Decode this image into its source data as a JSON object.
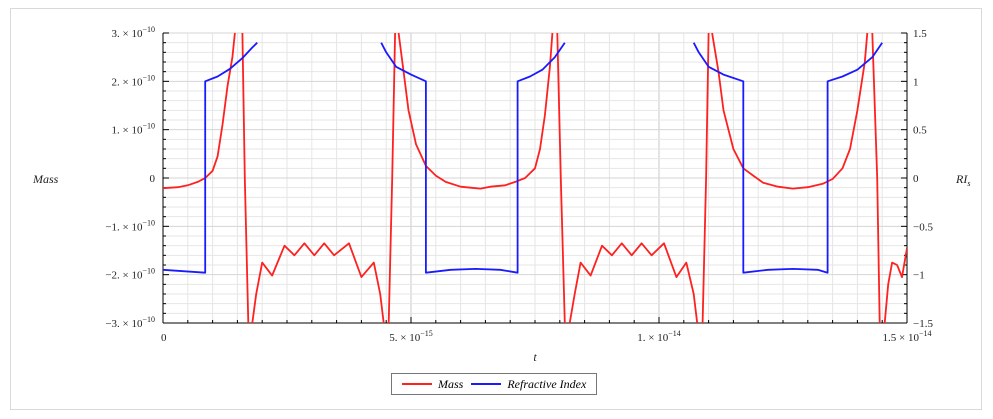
{
  "chart_data": {
    "type": "line",
    "xlabel": "t",
    "ylabel_left": "Mass",
    "ylabel_right": "RI",
    "ylabel_right_sub": "s",
    "xlim": [
      0,
      1.5e-14
    ],
    "ylim_left": [
      -3e-10,
      3e-10
    ],
    "ylim_right": [
      -1.5,
      1.5
    ],
    "grid": true,
    "legend_position": "bottom-center",
    "x_ticks": [
      {
        "value": 0,
        "label": "0"
      },
      {
        "value": 5e-15,
        "label": "5. × 10",
        "exp": "−15"
      },
      {
        "value": 1e-14,
        "label": "1. × 10",
        "exp": "−14"
      },
      {
        "value": 1.5e-14,
        "label": "1.5 × 10",
        "exp": "−14"
      }
    ],
    "left_ticks": [
      {
        "value": 3e-10,
        "label": "3. × 10",
        "exp": "−10"
      },
      {
        "value": 2e-10,
        "label": "2. × 10",
        "exp": "−10"
      },
      {
        "value": 1e-10,
        "label": "1. × 10",
        "exp": "−10"
      },
      {
        "value": 0,
        "label": "0",
        "exp": ""
      },
      {
        "value": -1e-10,
        "label": "−1. × 10",
        "exp": "−10"
      },
      {
        "value": -2e-10,
        "label": "−2. × 10",
        "exp": "−10"
      },
      {
        "value": -3e-10,
        "label": "−3. × 10",
        "exp": "−10"
      }
    ],
    "right_ticks": [
      {
        "value": 1.5,
        "label": "1.5"
      },
      {
        "value": 1,
        "label": "1"
      },
      {
        "value": 0.5,
        "label": "0.5"
      },
      {
        "value": 0,
        "label": "0"
      },
      {
        "value": -0.5,
        "label": "−0.5"
      },
      {
        "value": -1,
        "label": "−1"
      },
      {
        "value": -1.5,
        "label": "−1.5"
      }
    ],
    "series": [
      {
        "name": "Mass",
        "color": "#ff2020",
        "axis": "left",
        "segments": [
          [
            [
              0,
              -2.1e-11
            ],
            [
              3e-16,
              -1.9e-11
            ],
            [
              5e-16,
              -1.5e-11
            ],
            [
              7e-16,
              -8e-12
            ],
            [
              8.5e-16,
              0
            ],
            [
              1e-15,
              1.5e-11
            ],
            [
              1.1e-15,
              4.5e-11
            ],
            [
              1.2e-15,
              1.1e-10
            ],
            [
              1.3e-15,
              1.9e-10
            ],
            [
              1.4e-15,
              2.5e-10
            ],
            [
              1.45e-15,
              3e-10
            ]
          ],
          [
            [
              1.6e-15,
              3e-10
            ],
            [
              1.65e-15,
              0
            ],
            [
              1.72e-15,
              -3e-10
            ]
          ],
          [
            [
              1.8e-15,
              -3e-10
            ],
            [
              1.88e-15,
              -2.4e-10
            ],
            [
              2e-15,
              -1.75e-10
            ],
            [
              2.2e-15,
              -2.02e-10
            ],
            [
              2.45e-15,
              -1.4e-10
            ],
            [
              2.65e-15,
              -1.6e-10
            ],
            [
              2.85e-15,
              -1.35e-10
            ],
            [
              3.05e-15,
              -1.6e-10
            ],
            [
              3.25e-15,
              -1.35e-10
            ],
            [
              3.45e-15,
              -1.6e-10
            ],
            [
              3.75e-15,
              -1.35e-10
            ],
            [
              4e-15,
              -2.05e-10
            ],
            [
              4.25e-15,
              -1.75e-10
            ],
            [
              4.38e-15,
              -2.4e-10
            ],
            [
              4.45e-15,
              -3e-10
            ]
          ],
          [
            [
              4.55e-15,
              -3e-10
            ],
            [
              4.62e-15,
              0
            ],
            [
              4.68e-15,
              3e-10
            ]
          ],
          [
            [
              4.75e-15,
              3e-10
            ],
            [
              4.85e-15,
              2.2e-10
            ],
            [
              4.95e-15,
              1.4e-10
            ],
            [
              5.1e-15,
              7e-11
            ],
            [
              5.3e-15,
              2.5e-11
            ],
            [
              5.5e-15,
              5e-12
            ],
            [
              5.7e-15,
              -8e-12
            ],
            [
              6e-15,
              -1.8e-11
            ],
            [
              6.2e-15,
              -2e-11
            ],
            [
              6.4e-15,
              -2.2e-11
            ],
            [
              6.6e-15,
              -1.8e-11
            ],
            [
              6.9e-15,
              -1.5e-11
            ],
            [
              7.1e-15,
              -8e-12
            ],
            [
              7.3e-15,
              0
            ],
            [
              7.5e-15,
              2e-11
            ],
            [
              7.6e-15,
              6e-11
            ],
            [
              7.7e-15,
              1.3e-10
            ],
            [
              7.8e-15,
              2.3e-10
            ],
            [
              7.85e-15,
              3e-10
            ]
          ],
          [
            [
              7.95e-15,
              3e-10
            ],
            [
              8.02e-15,
              0
            ],
            [
              8.1e-15,
              -3e-10
            ]
          ],
          [
            [
              8.2e-15,
              -3e-10
            ],
            [
              8.3e-15,
              -2.4e-10
            ],
            [
              8.42e-15,
              -1.75e-10
            ],
            [
              8.62e-15,
              -2.02e-10
            ],
            [
              8.85e-15,
              -1.4e-10
            ],
            [
              9.05e-15,
              -1.6e-10
            ],
            [
              9.25e-15,
              -1.35e-10
            ],
            [
              9.45e-15,
              -1.6e-10
            ],
            [
              9.65e-15,
              -1.35e-10
            ],
            [
              9.85e-15,
              -1.6e-10
            ],
            [
              1.01e-14,
              -1.35e-10
            ],
            [
              1.035e-14,
              -2.05e-10
            ],
            [
              1.055e-14,
              -1.75e-10
            ],
            [
              1.07e-14,
              -2.4e-10
            ],
            [
              1.077e-14,
              -3e-10
            ]
          ],
          [
            [
              1.088e-14,
              -3e-10
            ],
            [
              1.095e-14,
              0
            ],
            [
              1.1e-14,
              3e-10
            ]
          ],
          [
            [
              1.107e-14,
              3e-10
            ],
            [
              1.12e-14,
              2.2e-10
            ],
            [
              1.13e-14,
              1.4e-10
            ],
            [
              1.15e-14,
              6e-11
            ],
            [
              1.17e-14,
              2e-11
            ],
            [
              1.19e-14,
              5e-12
            ],
            [
              1.21e-14,
              -1e-11
            ],
            [
              1.24e-14,
              -1.8e-11
            ],
            [
              1.27e-14,
              -2.2e-11
            ],
            [
              1.3e-14,
              -1.9e-11
            ],
            [
              1.33e-14,
              -1.2e-11
            ],
            [
              1.35e-14,
              -2e-12
            ],
            [
              1.37e-14,
              2e-11
            ],
            [
              1.385e-14,
              6e-11
            ],
            [
              1.4e-14,
              1.4e-10
            ],
            [
              1.415e-14,
              2.4e-10
            ],
            [
              1.42e-14,
              3e-10
            ]
          ],
          [
            [
              1.43e-14,
              3e-10
            ],
            [
              1.44e-14,
              0
            ],
            [
              1.445e-14,
              -3e-10
            ]
          ],
          [
            [
              1.455e-14,
              -3e-10
            ],
            [
              1.462e-14,
              -2.2e-10
            ],
            [
              1.47e-14,
              -1.75e-10
            ],
            [
              1.48e-14,
              -1.8e-10
            ],
            [
              1.49e-14,
              -2.05e-10
            ],
            [
              1.5e-14,
              -1.45e-10
            ]
          ]
        ]
      },
      {
        "name": "Refractive Index",
        "color": "#1a1aff",
        "axis": "right",
        "segments": [
          [
            [
              0,
              -0.95
            ],
            [
              8.5e-16,
              -0.98
            ],
            [
              8.5e-16,
              1.0
            ],
            [
              1.1e-15,
              1.05
            ],
            [
              1.35e-15,
              1.13
            ],
            [
              1.6e-15,
              1.24
            ],
            [
              1.8e-15,
              1.35
            ],
            [
              1.9e-15,
              1.4
            ]
          ],
          [
            [
              4.4e-15,
              1.4
            ],
            [
              4.5e-15,
              1.3
            ],
            [
              4.7e-15,
              1.15
            ],
            [
              5e-15,
              1.07
            ],
            [
              5.3e-15,
              1.0
            ],
            [
              5.3e-15,
              -0.98
            ],
            [
              5.8e-15,
              -0.95
            ],
            [
              6.3e-15,
              -0.94
            ],
            [
              6.8e-15,
              -0.95
            ],
            [
              7.15e-15,
              -0.98
            ],
            [
              7.15e-15,
              1.0
            ],
            [
              7.4e-15,
              1.05
            ],
            [
              7.65e-15,
              1.12
            ],
            [
              7.9e-15,
              1.25
            ],
            [
              8.1e-15,
              1.4
            ]
          ],
          [
            [
              1.07e-14,
              1.4
            ],
            [
              1.08e-14,
              1.3
            ],
            [
              1.1e-14,
              1.15
            ],
            [
              1.13e-14,
              1.07
            ],
            [
              1.17e-14,
              1.0
            ],
            [
              1.17e-14,
              -0.98
            ],
            [
              1.22e-14,
              -0.95
            ],
            [
              1.27e-14,
              -0.94
            ],
            [
              1.32e-14,
              -0.95
            ],
            [
              1.34e-14,
              -0.98
            ],
            [
              1.34e-14,
              1.0
            ],
            [
              1.37e-14,
              1.05
            ],
            [
              1.4e-14,
              1.12
            ],
            [
              1.43e-14,
              1.25
            ],
            [
              1.45e-14,
              1.4
            ]
          ]
        ]
      }
    ]
  },
  "legend": {
    "mass_label": "Mass",
    "ri_label": "Refractive Index"
  },
  "colors": {
    "mass": "#ff2020",
    "ri": "#1a1aff",
    "grid": "#e6e6e6",
    "axis": "#000000"
  }
}
